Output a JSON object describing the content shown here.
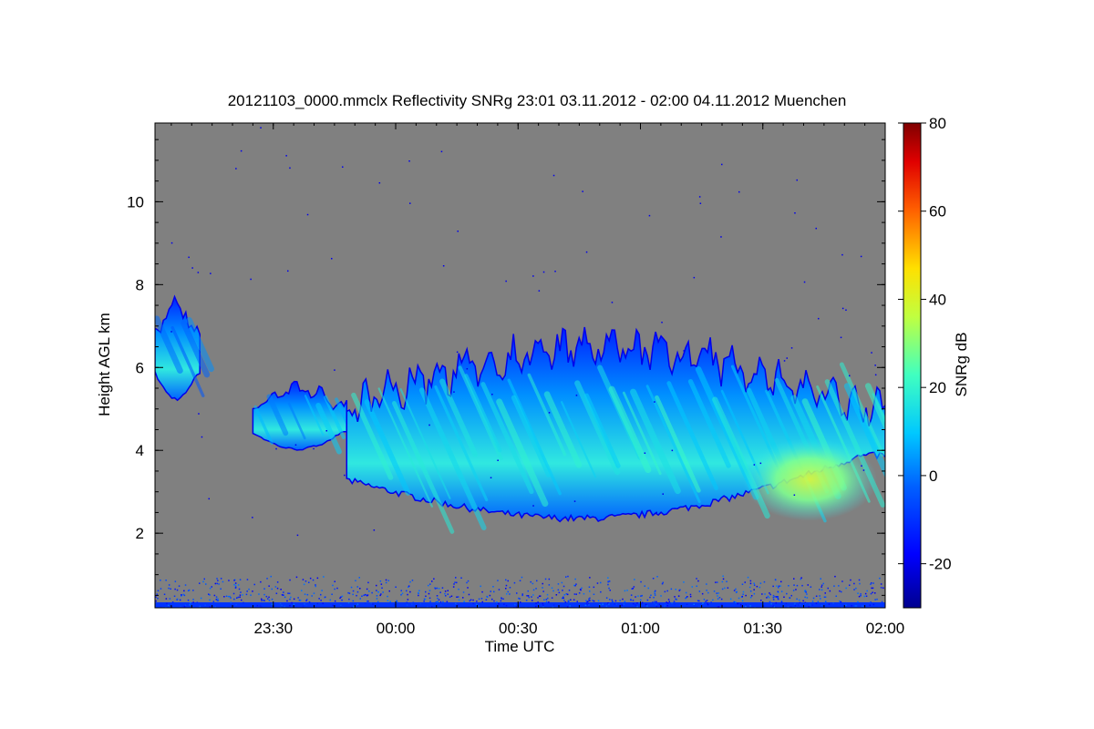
{
  "chart_data": {
    "type": "heatmap",
    "title": "20121103_0000.mmclx Reflectivity SNRg   23:01 03.11.2012 - 02:00 04.11.2012 Muenchen",
    "xlabel": "Time UTC",
    "ylabel": "Height AGL km",
    "x_ticks": [
      "23:30",
      "00:00",
      "00:30",
      "01:00",
      "01:30",
      "02:00"
    ],
    "y_ticks": [
      "2",
      "4",
      "6",
      "8",
      "10"
    ],
    "xlim": [
      "23:01",
      "02:00"
    ],
    "ylim": [
      0.2,
      11.9
    ],
    "background_color": "#808080",
    "colorbar": {
      "label": "SNRg dB",
      "range": [
        -30,
        80
      ],
      "ticks": [
        "-20",
        "0",
        "20",
        "40",
        "60",
        "80"
      ],
      "colormap": "jet",
      "colors": [
        "#00008f",
        "#0000ff",
        "#0080ff",
        "#00ffff",
        "#80ff80",
        "#ffff00",
        "#ff8000",
        "#ff0000",
        "#800000"
      ]
    },
    "features": [
      {
        "name": "virga fallstreak",
        "time_start": "23:01",
        "time_end": "23:12",
        "height_bottom_km": 5.2,
        "height_top_km": 7.7,
        "snr_db": -5
      },
      {
        "name": "isolated cloud",
        "time_start": "23:25",
        "time_end": "23:48",
        "height_bottom_km": 4.0,
        "height_top_km": 5.6,
        "snr_db": 0
      },
      {
        "name": "main cloud layer",
        "time_start": "23:48",
        "time_end": "02:00",
        "height_bottom_km": 2.0,
        "height_top_km": 6.8,
        "snr_db": 10
      },
      {
        "name": "strong core",
        "time_start": "01:25",
        "time_end": "01:58",
        "height_bottom_km": 2.3,
        "height_top_km": 4.3,
        "snr_db": 30
      },
      {
        "name": "surface clutter",
        "time_start": "23:01",
        "time_end": "02:00",
        "height_bottom_km": 0.2,
        "height_top_km": 1.0,
        "snr_db": -10
      }
    ]
  }
}
